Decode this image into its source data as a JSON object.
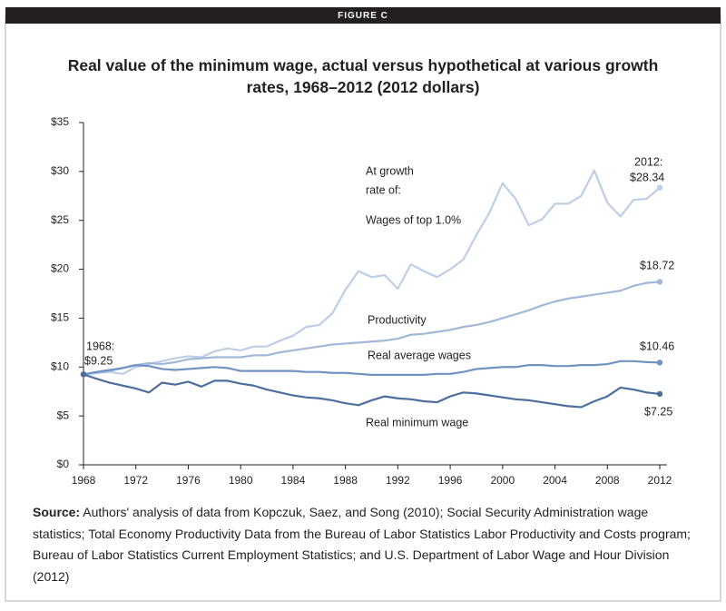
{
  "figure_label": "FIGURE C",
  "chart_data": {
    "type": "line",
    "title": "Real value of the minimum wage, actual versus hypothetical at various growth rates, 1968–2012 (2012 dollars)",
    "x": [
      1968,
      1969,
      1970,
      1971,
      1972,
      1973,
      1974,
      1975,
      1976,
      1977,
      1978,
      1979,
      1980,
      1981,
      1982,
      1983,
      1984,
      1985,
      1986,
      1987,
      1988,
      1989,
      1990,
      1991,
      1992,
      1993,
      1994,
      1995,
      1996,
      1997,
      1998,
      1999,
      2000,
      2001,
      2002,
      2003,
      2004,
      2005,
      2006,
      2007,
      2008,
      2009,
      2010,
      2011,
      2012
    ],
    "xlim": [
      1968,
      2012
    ],
    "xticks": [
      1968,
      1972,
      1976,
      1980,
      1984,
      1988,
      1992,
      1996,
      2000,
      2004,
      2008,
      2012
    ],
    "ylim": [
      0,
      35
    ],
    "yticks": [
      {
        "value": 0,
        "label": "$0"
      },
      {
        "value": 5,
        "label": "$5"
      },
      {
        "value": 10,
        "label": "$10"
      },
      {
        "value": 15,
        "label": "$15"
      },
      {
        "value": 20,
        "label": "$20"
      },
      {
        "value": 25,
        "label": "$25"
      },
      {
        "value": 30,
        "label": "$30"
      },
      {
        "value": 35,
        "label": "$35"
      }
    ],
    "grid": false,
    "series": [
      {
        "name": "Wages of top 1.0%",
        "color": "#bdcee6",
        "values": [
          9.25,
          9.4,
          9.5,
          9.3,
          10.0,
          10.3,
          10.6,
          10.9,
          11.1,
          11.0,
          11.6,
          11.9,
          11.7,
          12.1,
          12.1,
          12.7,
          13.2,
          14.1,
          14.3,
          15.5,
          17.9,
          19.8,
          19.2,
          19.4,
          18.0,
          20.5,
          19.8,
          19.2,
          20.0,
          21.0,
          23.5,
          25.8,
          28.8,
          27.2,
          24.5,
          25.1,
          26.7,
          26.7,
          27.5,
          30.1,
          26.8,
          25.4,
          27.1,
          27.2,
          28.34
        ]
      },
      {
        "name": "Productivity",
        "color": "#a2b8da",
        "values": [
          9.25,
          9.4,
          9.6,
          9.9,
          10.2,
          10.4,
          10.3,
          10.5,
          10.8,
          10.9,
          11.0,
          11.0,
          11.0,
          11.2,
          11.2,
          11.5,
          11.7,
          11.9,
          12.1,
          12.3,
          12.4,
          12.5,
          12.6,
          12.7,
          12.9,
          13.3,
          13.4,
          13.6,
          13.8,
          14.1,
          14.3,
          14.6,
          15.0,
          15.4,
          15.8,
          16.3,
          16.7,
          17.0,
          17.2,
          17.4,
          17.6,
          17.8,
          18.3,
          18.6,
          18.72
        ]
      },
      {
        "name": "Real average wages",
        "color": "#7192c2",
        "values": [
          9.25,
          9.5,
          9.7,
          9.9,
          10.2,
          10.1,
          9.8,
          9.7,
          9.8,
          9.9,
          10.0,
          9.9,
          9.6,
          9.6,
          9.6,
          9.6,
          9.6,
          9.5,
          9.5,
          9.4,
          9.4,
          9.3,
          9.2,
          9.2,
          9.2,
          9.2,
          9.2,
          9.3,
          9.3,
          9.5,
          9.8,
          9.9,
          10.0,
          10.0,
          10.2,
          10.2,
          10.1,
          10.1,
          10.2,
          10.2,
          10.3,
          10.6,
          10.6,
          10.5,
          10.46
        ]
      },
      {
        "name": "Real minimum wage",
        "color": "#4d6e9f",
        "values": [
          9.25,
          8.8,
          8.4,
          8.1,
          7.8,
          7.4,
          8.4,
          8.2,
          8.5,
          8.0,
          8.6,
          8.6,
          8.3,
          8.1,
          7.7,
          7.4,
          7.1,
          6.9,
          6.8,
          6.6,
          6.3,
          6.1,
          6.6,
          7.0,
          6.8,
          6.7,
          6.5,
          6.4,
          7.0,
          7.4,
          7.3,
          7.1,
          6.9,
          6.7,
          6.6,
          6.4,
          6.2,
          6.0,
          5.9,
          6.5,
          7.0,
          7.9,
          7.7,
          7.4,
          7.25
        ]
      }
    ],
    "annotations": [
      "1968:",
      "$9.25",
      "2012:",
      "$28.34",
      "$18.72",
      "$10.46",
      "$7.25",
      "At growth",
      "rate of:"
    ]
  },
  "source_label": "Source:",
  "source": "Authors' analysis of data from Kopczuk, Saez, and Song (2010); Social Security Administration wage statistics; Total Economy Productivity Data from the Bureau of Labor Statistics Labor Productivity and Costs program; Bureau of Labor Statistics Current Employment Statistics; and U.S. Department of Labor Wage and Hour Division (2012)"
}
